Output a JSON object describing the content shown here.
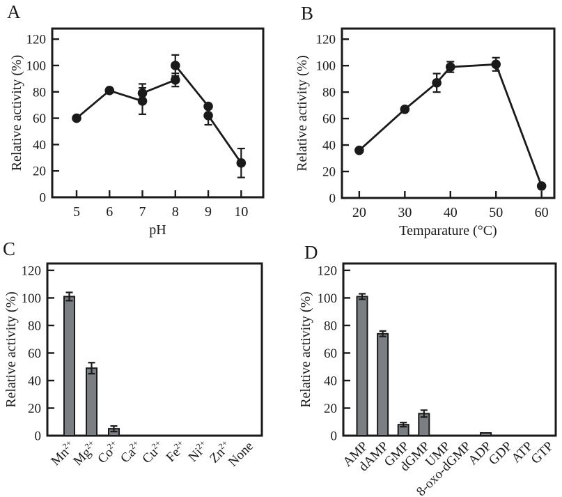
{
  "panel_labels": [
    "A",
    "B",
    "C",
    "D"
  ],
  "colors": {
    "background": "#ffffff",
    "ink": "#1a1a1a",
    "bar_fill": "#7b7e82"
  },
  "chart_data": [
    {
      "panel": "A",
      "type": "line",
      "title": "",
      "xlabel": "pH",
      "ylabel": "Relative activity (%)",
      "xticks": [
        5,
        6,
        7,
        8,
        9,
        10
      ],
      "yticks": [
        0,
        20,
        40,
        60,
        80,
        100,
        120
      ],
      "xlim": [
        4.26,
        10.67
      ],
      "ylim": [
        0,
        128
      ],
      "grid": false,
      "marker": "filled-circle",
      "points": [
        {
          "x": 5,
          "y": 60,
          "err": 0
        },
        {
          "x": 6,
          "y": 81,
          "err": 0
        },
        {
          "x": 7,
          "y": 79,
          "err": 7
        },
        {
          "x": 7,
          "y": 73,
          "err": 10
        },
        {
          "x": 8,
          "y": 100,
          "err": 8
        },
        {
          "x": 8,
          "y": 89,
          "err": 5
        },
        {
          "x": 9,
          "y": 69,
          "err": 0
        },
        {
          "x": 9,
          "y": 62,
          "err": 7
        },
        {
          "x": 10,
          "y": 26,
          "err": 11
        }
      ],
      "segments": [
        [
          [
            5,
            60
          ],
          [
            6,
            81
          ],
          [
            7,
            73
          ]
        ],
        [
          [
            7,
            79
          ],
          [
            8,
            89
          ]
        ],
        [
          [
            8,
            100
          ],
          [
            9,
            69
          ]
        ],
        [
          [
            9,
            62
          ],
          [
            10,
            26
          ]
        ]
      ]
    },
    {
      "panel": "B",
      "type": "line",
      "title": "",
      "xlabel": "Temparature (°C)",
      "ylabel": "Relative activity (%)",
      "xticks": [
        20,
        30,
        40,
        50,
        60
      ],
      "yticks": [
        0,
        20,
        40,
        60,
        80,
        100,
        120
      ],
      "xlim": [
        16.2,
        62.8
      ],
      "ylim": [
        0,
        128
      ],
      "grid": false,
      "marker": "filled-circle",
      "points": [
        {
          "x": 20,
          "y": 36,
          "err": 0
        },
        {
          "x": 30,
          "y": 67,
          "err": 0
        },
        {
          "x": 37,
          "y": 87,
          "err": 7
        },
        {
          "x": 40,
          "y": 99,
          "err": 4
        },
        {
          "x": 50,
          "y": 101,
          "err": 5
        },
        {
          "x": 60,
          "y": 9,
          "err": 0
        }
      ],
      "segments": [
        [
          [
            20,
            36
          ],
          [
            30,
            67
          ],
          [
            37,
            87
          ],
          [
            40,
            99
          ],
          [
            50,
            101
          ],
          [
            60,
            9
          ]
        ]
      ]
    },
    {
      "panel": "C",
      "type": "bar",
      "title": "",
      "xlabel": "",
      "ylabel": "Relative activity (%)",
      "yticks": [
        0,
        20,
        40,
        60,
        80,
        100,
        120
      ],
      "ylim": [
        0,
        125
      ],
      "grid": false,
      "categories": [
        {
          "text": "Mn",
          "sup": "2+"
        },
        {
          "text": "Mg",
          "sup": "2+"
        },
        {
          "text": "Co",
          "sup": "2+"
        },
        {
          "text": "Ca",
          "sup": "2+"
        },
        {
          "text": "Cu",
          "sup": "2+"
        },
        {
          "text": "Fe",
          "sup": "2+"
        },
        {
          "text": "Ni",
          "sup": "2+"
        },
        {
          "text": "Zn",
          "sup": "2+"
        },
        {
          "text": "None",
          "sup": ""
        }
      ],
      "values": [
        101,
        49,
        5,
        0,
        0,
        0,
        0,
        0,
        0
      ],
      "errors": [
        3,
        4,
        2,
        0,
        0,
        0,
        0,
        0,
        0
      ]
    },
    {
      "panel": "D",
      "type": "bar",
      "title": "",
      "xlabel": "",
      "ylabel": "Relative activity (%)",
      "yticks": [
        0,
        20,
        40,
        60,
        80,
        100,
        120
      ],
      "ylim": [
        0,
        125
      ],
      "grid": false,
      "categories": [
        {
          "text": "AMP",
          "sup": ""
        },
        {
          "text": "dAMP",
          "sup": ""
        },
        {
          "text": "GMP",
          "sup": ""
        },
        {
          "text": "dGMP",
          "sup": ""
        },
        {
          "text": "UMP",
          "sup": ""
        },
        {
          "text": "8-oxo-dGMP",
          "sup": ""
        },
        {
          "text": "ADP",
          "sup": ""
        },
        {
          "text": "GDP",
          "sup": ""
        },
        {
          "text": "ATP",
          "sup": ""
        },
        {
          "text": "GTP",
          "sup": ""
        }
      ],
      "values": [
        101,
        74,
        8,
        16,
        0,
        0,
        2,
        0,
        0,
        0
      ],
      "errors": [
        2,
        2,
        1.5,
        2.5,
        0,
        0,
        0,
        0,
        0,
        0
      ]
    }
  ]
}
